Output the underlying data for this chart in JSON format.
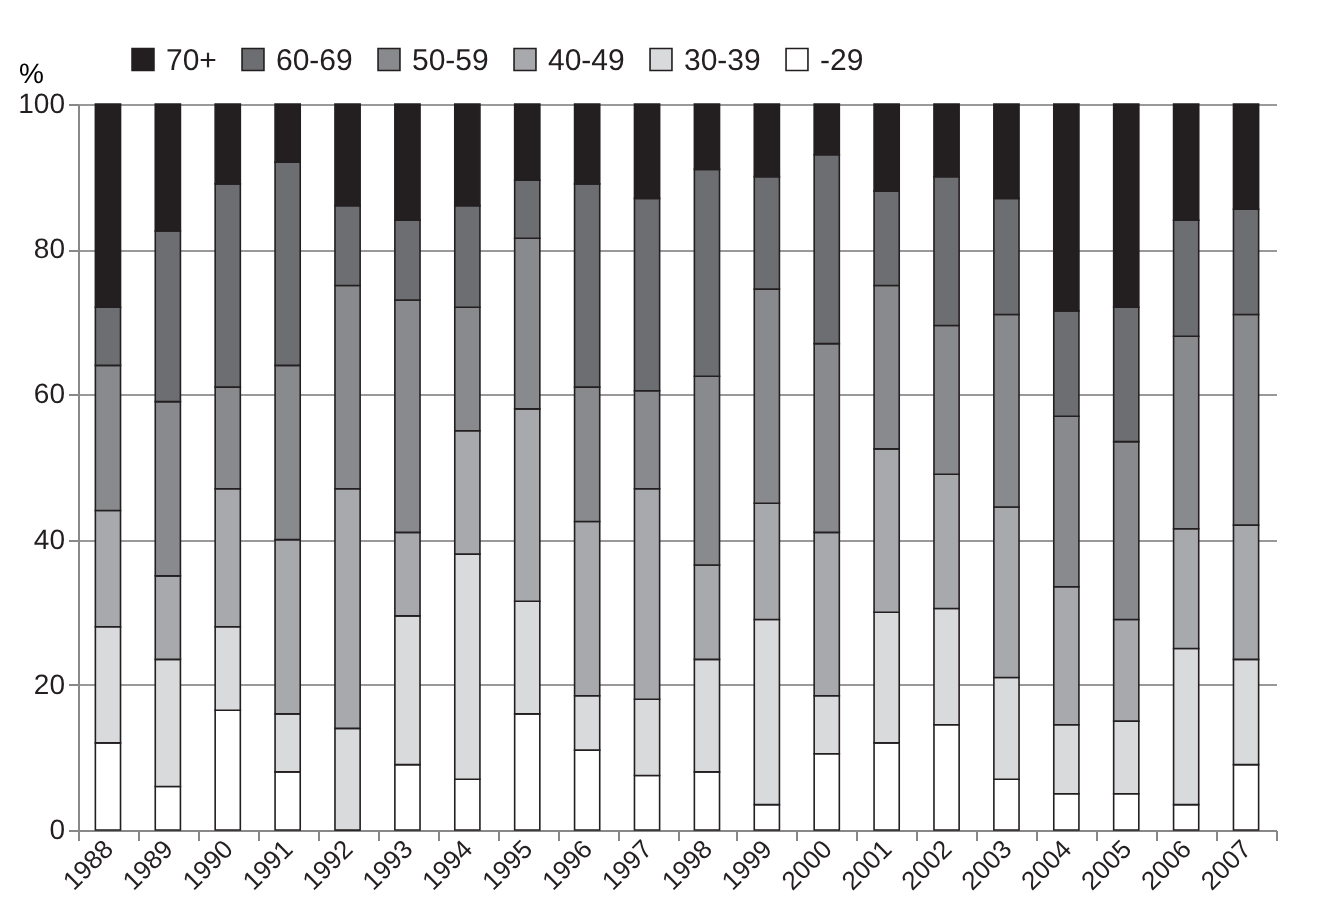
{
  "chart_data": {
    "type": "bar",
    "stacked": true,
    "ylabel": "%",
    "categories": [
      "1988",
      "1989",
      "1990",
      "1991",
      "1992",
      "1993",
      "1994",
      "1995",
      "1996",
      "1997",
      "1998",
      "1999",
      "2000",
      "2001",
      "2002",
      "2003",
      "2004",
      "2005",
      "2006",
      "2007"
    ],
    "series": [
      {
        "name": "-29",
        "color": "#ffffff",
        "values": [
          12,
          6,
          16.5,
          8,
          0,
          9,
          7,
          16,
          11,
          7.5,
          8,
          3.5,
          10.5,
          12,
          14.5,
          7,
          5,
          5,
          3.5,
          9
        ]
      },
      {
        "name": "30-39",
        "color": "#d9dadb",
        "values": [
          16,
          17.5,
          11.5,
          8,
          14,
          20.5,
          31,
          15.5,
          7.5,
          10.5,
          15.5,
          25.5,
          8,
          18,
          16,
          14,
          9.5,
          10,
          21.5,
          14.5
        ]
      },
      {
        "name": "40-49",
        "color": "#a7a9ac",
        "values": [
          16,
          11.5,
          19,
          24,
          33,
          11.5,
          17,
          26.5,
          24,
          29,
          13,
          16,
          22.5,
          22.5,
          18.5,
          23.5,
          19,
          14,
          16.5,
          18.5
        ]
      },
      {
        "name": "50-59",
        "color": "#898a8d",
        "values": [
          20,
          24,
          14,
          24,
          28,
          32,
          17,
          23.5,
          18.5,
          13.5,
          26,
          29.5,
          26,
          22.5,
          20.5,
          26.5,
          23.5,
          24.5,
          26.5,
          29
        ]
      },
      {
        "name": "60-69",
        "color": "#6d6e71",
        "values": [
          8,
          23.5,
          28,
          28,
          11,
          11,
          14,
          8,
          28,
          26.5,
          28.5,
          15.5,
          26,
          13,
          20.5,
          16,
          14.5,
          18.5,
          16,
          14.5
        ]
      },
      {
        "name": "70+",
        "color": "#231f20",
        "values": [
          28,
          17.5,
          11,
          8,
          14,
          16,
          14,
          10.5,
          11,
          13,
          9,
          10,
          7,
          12,
          10,
          13,
          28.5,
          28,
          16,
          14.5
        ]
      }
    ],
    "ylim": [
      0,
      100
    ],
    "yticks": [
      0,
      20,
      40,
      60,
      80,
      100
    ],
    "grid": "y",
    "legend": "top left"
  }
}
